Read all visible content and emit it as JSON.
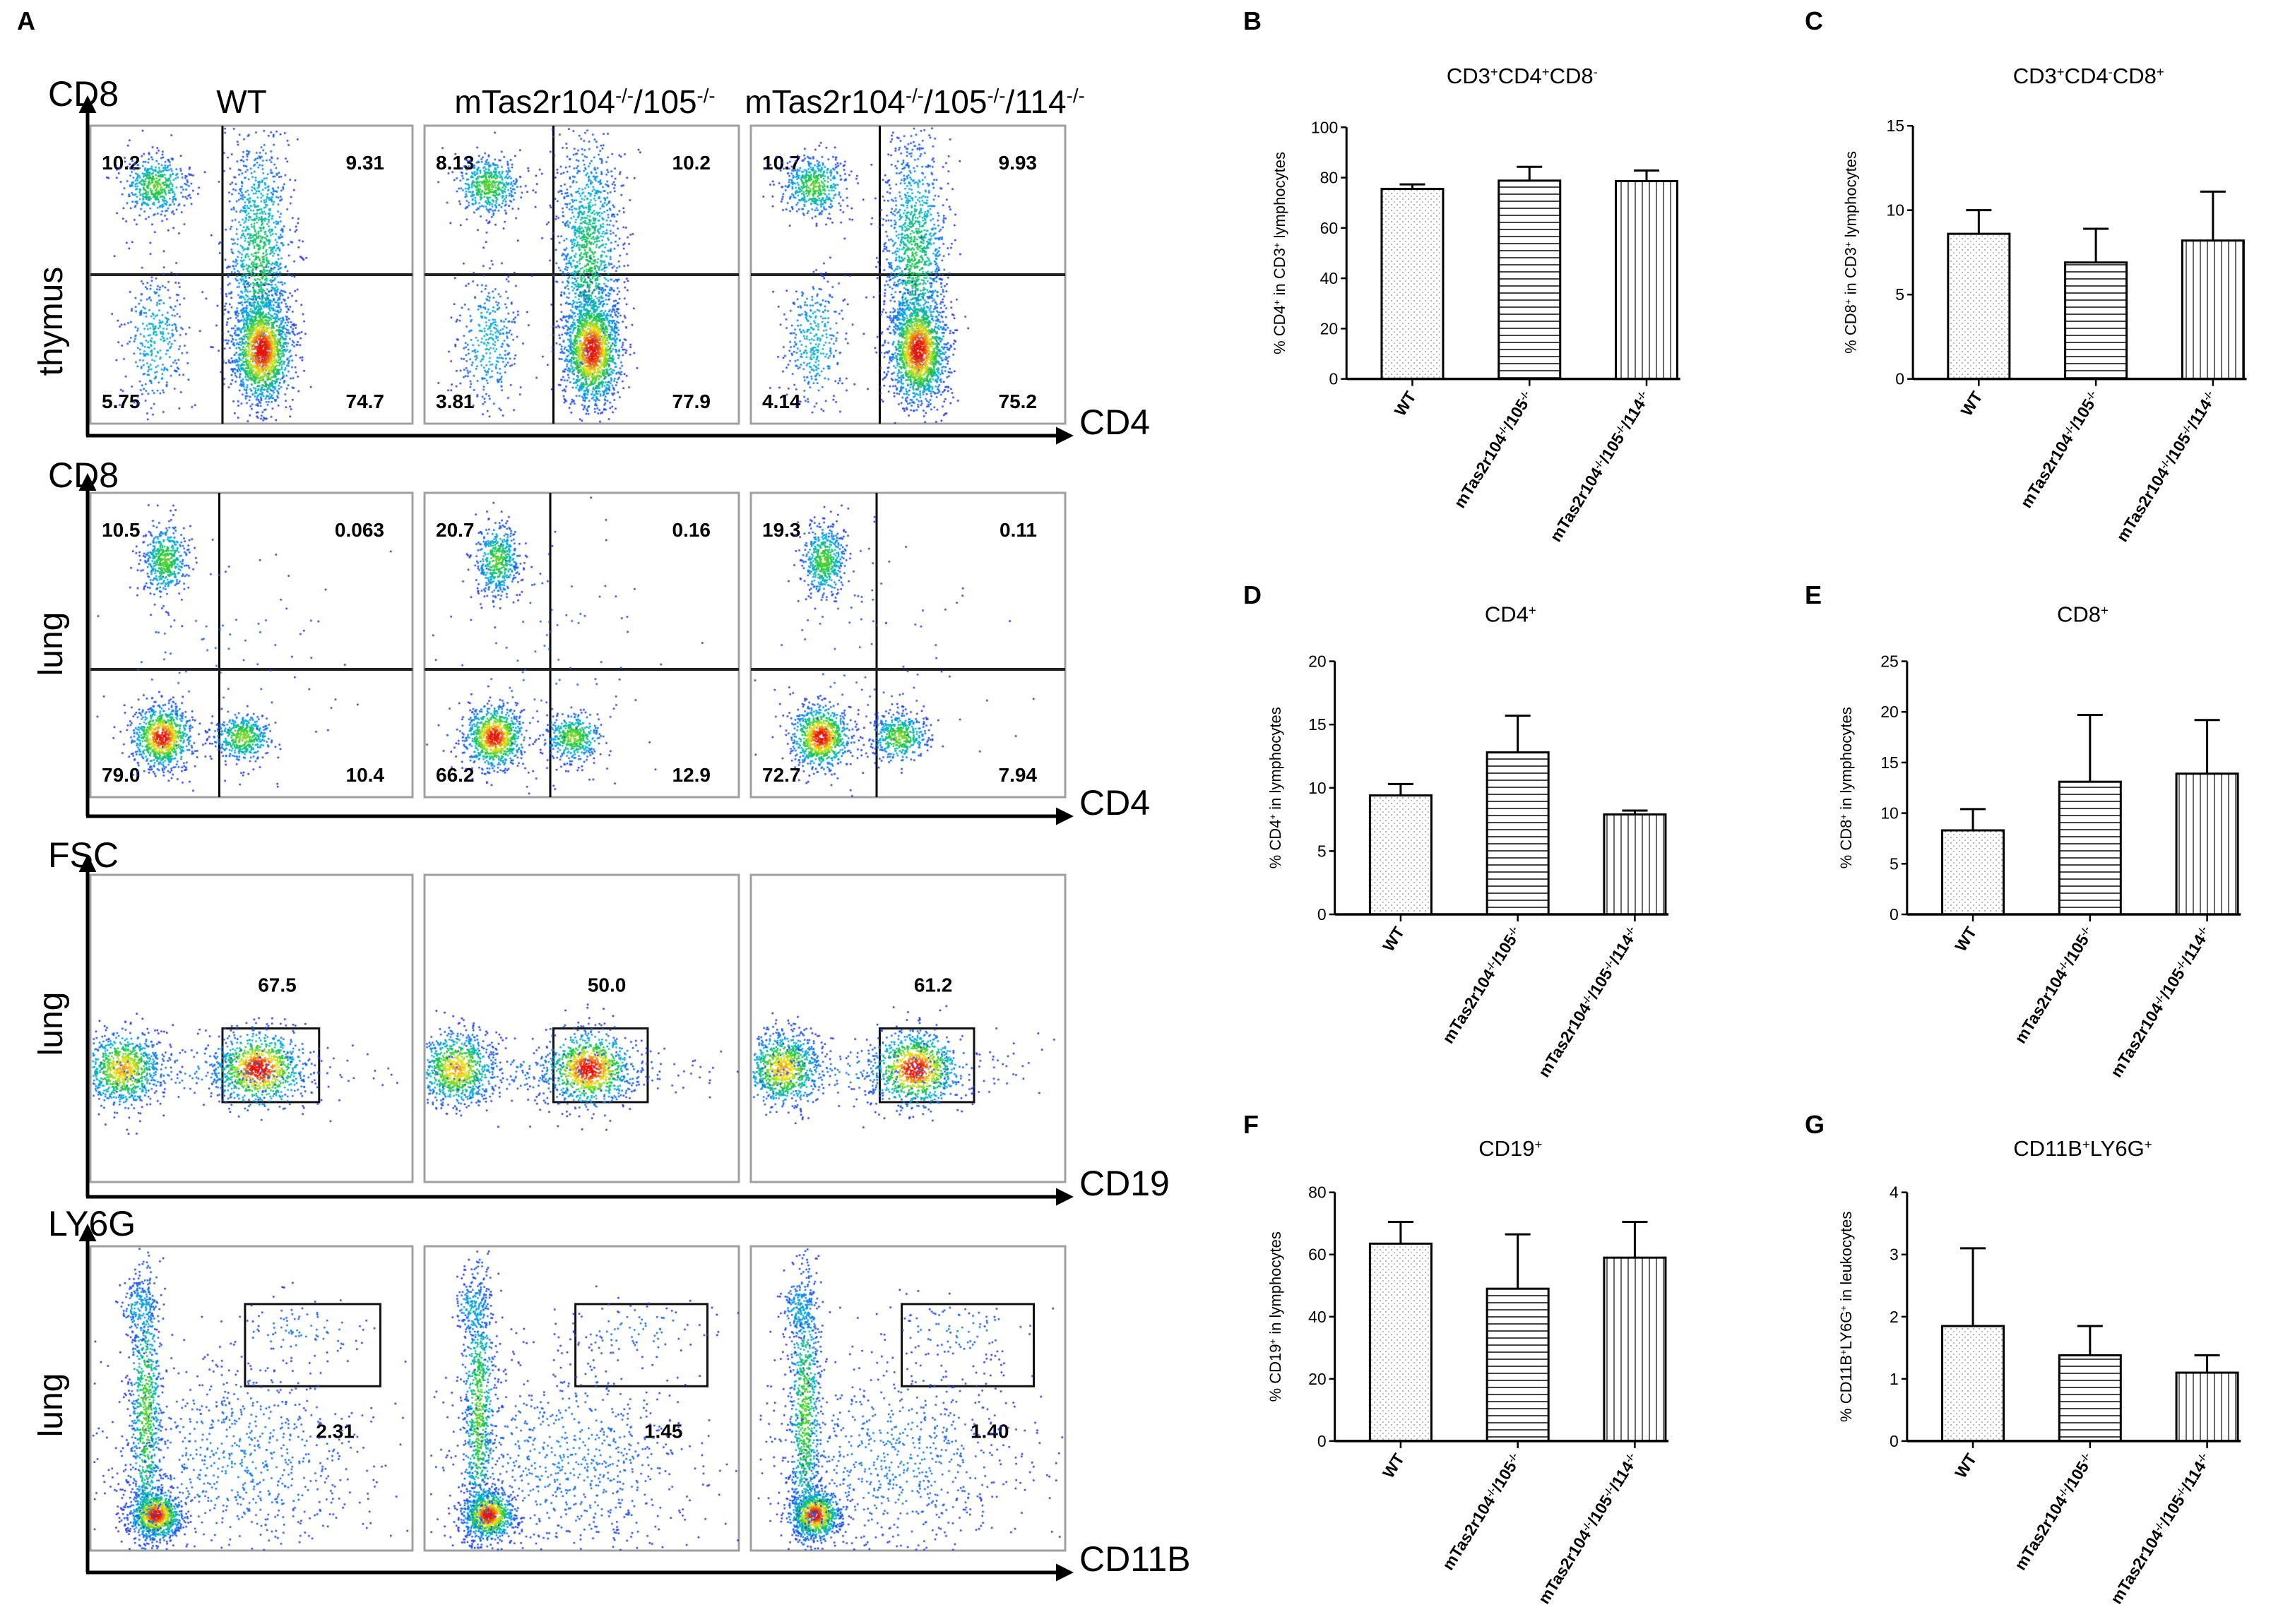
{
  "panel_letters": [
    "A",
    "B",
    "C",
    "D",
    "E",
    "F",
    "G"
  ],
  "panel_a": {
    "column_headers": [
      "WT",
      "mTas2r104-/-/105-/-",
      "mTas2r104-/-/105-/-/114-/-"
    ],
    "rows": [
      {
        "tissue": "thymus",
        "y_axis": "CD8",
        "x_axis": "CD4",
        "gate": "quadrant",
        "values": [
          [
            "10.2",
            "9.31",
            "5.75",
            "74.7"
          ],
          [
            "8.13",
            "10.2",
            "3.81",
            "77.9"
          ],
          [
            "10.7",
            "9.93",
            "4.14",
            "75.2"
          ]
        ]
      },
      {
        "tissue": "lung",
        "y_axis": "CD8",
        "x_axis": "CD4",
        "gate": "quadrant",
        "values": [
          [
            "10.5",
            "0.063",
            "79.0",
            "10.4"
          ],
          [
            "20.7",
            "0.16",
            "66.2",
            "12.9"
          ],
          [
            "19.3",
            "0.11",
            "72.7",
            "7.94"
          ]
        ]
      },
      {
        "tissue": "lung",
        "y_axis": "FSC",
        "x_axis": "CD19",
        "gate": "rectangle",
        "values": [
          [
            "67.5"
          ],
          [
            "50.0"
          ],
          [
            "61.2"
          ]
        ]
      },
      {
        "tissue": "lung",
        "y_axis": "LY6G",
        "x_axis": "CD11B",
        "gate": "rectangle",
        "values": [
          [
            "2.31"
          ],
          [
            "1.45"
          ],
          [
            "1.40"
          ]
        ]
      }
    ]
  },
  "chart_data": [
    {
      "panel": "B",
      "type": "bar",
      "title": "CD3+CD4+CD8-",
      "ylabel": "% CD4+ in CD3+ lymphocytes",
      "xlabel": "",
      "categories": [
        "WT",
        "mTas2r104-/-/105-/-",
        "mTas2r104-/-/105-/-/114-/-"
      ],
      "values": [
        75.5,
        78.8,
        78.6
      ],
      "error_upper": [
        77.3,
        84.3,
        82.8
      ],
      "ylim": [
        0,
        100
      ],
      "yticks": [
        0,
        20,
        40,
        60,
        80,
        100
      ],
      "grid": false
    },
    {
      "panel": "C",
      "type": "bar",
      "title": "CD3+CD4-CD8+",
      "ylabel": "% CD8+ in CD3+ lymphocytes",
      "xlabel": "",
      "categories": [
        "WT",
        "mTas2r104-/-/105-/-",
        "mTas2r104-/-/105-/-/114-/-"
      ],
      "values": [
        8.6,
        6.9,
        8.2
      ],
      "error_upper": [
        10.0,
        8.9,
        11.1
      ],
      "ylim": [
        0,
        15
      ],
      "yticks": [
        0,
        5,
        10,
        15
      ],
      "grid": false
    },
    {
      "panel": "D",
      "type": "bar",
      "title": "CD4+",
      "ylabel": "% CD4+ in lymphocytes",
      "xlabel": "",
      "categories": [
        "WT",
        "mTas2r104-/-/105-/-",
        "mTas2r104-/-/105-/-/114-/-"
      ],
      "values": [
        9.4,
        12.8,
        7.9
      ],
      "error_upper": [
        10.3,
        15.7,
        8.2
      ],
      "ylim": [
        0,
        20
      ],
      "yticks": [
        0,
        5,
        10,
        15,
        20
      ],
      "grid": false
    },
    {
      "panel": "E",
      "type": "bar",
      "title": "CD8+",
      "ylabel": "% CD8+ in lymphocytes",
      "xlabel": "",
      "categories": [
        "WT",
        "mTas2r104-/-/105-/-",
        "mTas2r104-/-/105-/-/114-/-"
      ],
      "values": [
        8.3,
        13.1,
        13.9
      ],
      "error_upper": [
        10.4,
        19.7,
        19.2
      ],
      "ylim": [
        0,
        25
      ],
      "yticks": [
        0,
        5,
        10,
        15,
        20,
        25
      ],
      "grid": false
    },
    {
      "panel": "F",
      "type": "bar",
      "title": "CD19+",
      "ylabel": "% CD19+ in lymphocytes",
      "xlabel": "",
      "categories": [
        "WT",
        "mTas2r104-/-/105-/-",
        "mTas2r104-/-/105-/-/114-/-"
      ],
      "values": [
        63.5,
        49.0,
        59.0
      ],
      "error_upper": [
        70.5,
        66.5,
        70.5
      ],
      "ylim": [
        0,
        80
      ],
      "yticks": [
        0,
        20,
        40,
        60,
        80
      ],
      "grid": false
    },
    {
      "panel": "G",
      "type": "bar",
      "title": "CD11B+LY6G+",
      "ylabel": "% CD11B+LY6G+ in leukocytes",
      "xlabel": "",
      "categories": [
        "WT",
        "mTas2r104-/-/105-/-",
        "mTas2r104-/-/105-/-/114-/-"
      ],
      "values": [
        1.85,
        1.38,
        1.1
      ],
      "error_upper": [
        3.1,
        1.85,
        1.38
      ],
      "ylim": [
        0,
        4
      ],
      "yticks": [
        0,
        1,
        2,
        3,
        4
      ],
      "grid": false
    }
  ],
  "colors": {
    "axis": "#000000",
    "box": "#a0a0a0",
    "bar_fill": "#ffffff",
    "density_low": "#2020e0",
    "density_high": "#e01010"
  }
}
